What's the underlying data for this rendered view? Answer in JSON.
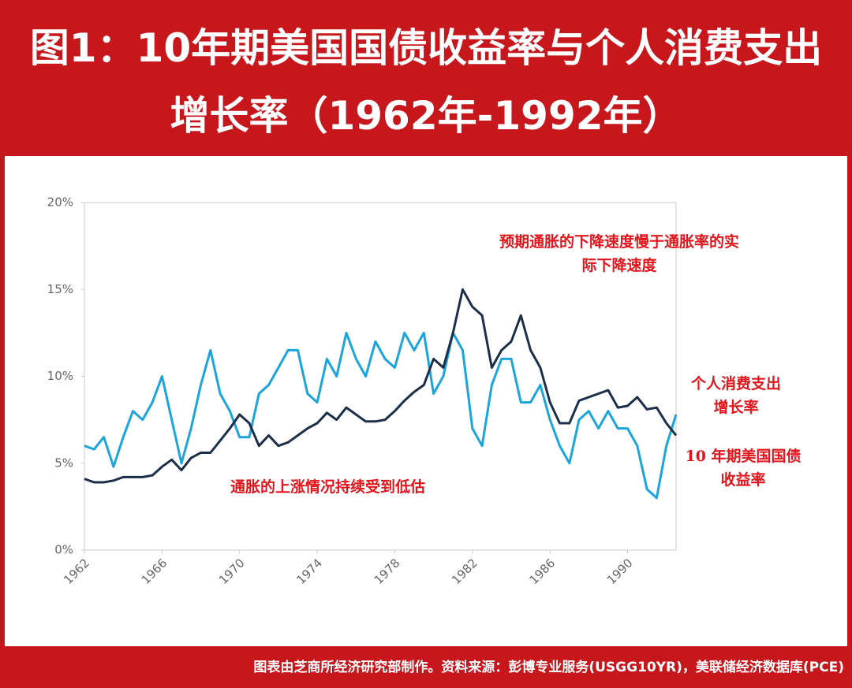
{
  "chart_data": {
    "type": "line",
    "title": "图1：10年期美国国债收益率与个人消费支出增长率（1962年-1992年）",
    "source": "图表由芝商所经济研究部制作。资料来源：彭博专业服务(USGG10YR)，美联储经济数据库(PCE)",
    "annotations": [
      "预期通胀的下降速度慢于通胀率的实际下降速度",
      "通胀的上涨情况持续受到低估"
    ],
    "x": [
      1962,
      1962.5,
      1963,
      1963.5,
      1964,
      1964.5,
      1965,
      1965.5,
      1966,
      1966.5,
      1967,
      1967.5,
      1968,
      1968.5,
      1969,
      1969.5,
      1970,
      1970.5,
      1971,
      1971.5,
      1972,
      1972.5,
      1973,
      1973.5,
      1974,
      1974.5,
      1975,
      1975.5,
      1976,
      1976.5,
      1977,
      1977.5,
      1978,
      1978.5,
      1979,
      1979.5,
      1980,
      1980.5,
      1981,
      1981.5,
      1982,
      1982.5,
      1983,
      1983.5,
      1984,
      1984.5,
      1985,
      1985.5,
      1986,
      1986.5,
      1987,
      1987.5,
      1988,
      1988.5,
      1989,
      1989.5,
      1990,
      1990.5,
      1991,
      1991.5,
      1992,
      1992.5
    ],
    "series": [
      {
        "name": "个人消费支出增长率",
        "color": "#1ba5dc",
        "values": [
          6.0,
          5.8,
          6.5,
          4.8,
          6.5,
          8.0,
          7.5,
          8.5,
          10.0,
          7.5,
          5.0,
          7.0,
          9.5,
          11.5,
          9.0,
          8.0,
          6.5,
          6.5,
          9.0,
          9.5,
          10.5,
          11.5,
          11.5,
          9.0,
          8.5,
          11.0,
          10.0,
          12.5,
          11.0,
          10.0,
          12.0,
          11.0,
          10.5,
          12.5,
          11.5,
          12.5,
          9.0,
          10.0,
          12.5,
          11.5,
          7.0,
          6.0,
          9.5,
          11.0,
          11.0,
          8.5,
          8.5,
          9.5,
          7.5,
          6.0,
          5.0,
          7.5,
          8.0,
          7.0,
          8.0,
          7.0,
          7.0,
          6.0,
          3.5,
          3.0,
          6.0,
          7.8
        ]
      },
      {
        "name": "10 年期美国国债收益率",
        "color": "#1c2e4a",
        "values": [
          4.1,
          3.9,
          3.9,
          4.0,
          4.2,
          4.2,
          4.2,
          4.3,
          4.8,
          5.2,
          4.6,
          5.3,
          5.6,
          5.6,
          6.3,
          7.0,
          7.8,
          7.3,
          6.0,
          6.6,
          6.0,
          6.2,
          6.6,
          7.0,
          7.3,
          7.9,
          7.5,
          8.2,
          7.8,
          7.4,
          7.4,
          7.5,
          8.0,
          8.6,
          9.1,
          9.5,
          11.0,
          10.5,
          12.5,
          15.0,
          14.0,
          13.5,
          10.5,
          11.5,
          12.0,
          13.5,
          11.5,
          10.5,
          8.5,
          7.3,
          7.3,
          8.6,
          8.8,
          9.0,
          9.2,
          8.2,
          8.3,
          8.8,
          8.1,
          8.2,
          7.3,
          6.6
        ]
      }
    ],
    "xlim": [
      1962,
      1992.5
    ],
    "xticks": [
      1962,
      1966,
      1970,
      1974,
      1978,
      1982,
      1986,
      1990
    ],
    "ylim": [
      0,
      20
    ],
    "yticks": [
      {
        "value": 0,
        "label": "0%"
      },
      {
        "value": 5,
        "label": "5%"
      },
      {
        "value": 10,
        "label": "10%"
      },
      {
        "value": 15,
        "label": "15%"
      },
      {
        "value": 20,
        "label": "20%"
      }
    ],
    "grid": false
  }
}
